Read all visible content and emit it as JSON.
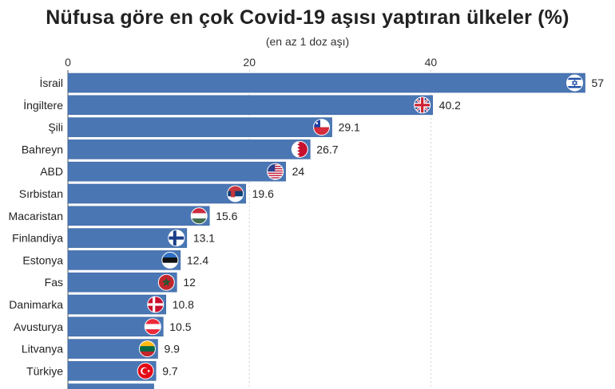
{
  "title": "Nüfusa göre en çok Covid-19 aşısı yaptıran ülkeler (%)",
  "subtitle": "(en az 1 doz aşı)",
  "chart_data": {
    "type": "bar",
    "orientation": "horizontal",
    "title": "Nüfusa göre en çok Covid-19 aşısı yaptıran ülkeler (%)",
    "subtitle": "(en az 1 doz aşı)",
    "xlabel": "",
    "ylabel": "",
    "xlim": [
      0,
      57
    ],
    "xticks": [
      0,
      20,
      40
    ],
    "grid": true,
    "bar_color": "#4a77b4",
    "categories": [
      "İsrail",
      "İngiltere",
      "Şili",
      "Bahreyn",
      "ABD",
      "Sırbistan",
      "Macaristan",
      "Finlandiya",
      "Estonya",
      "Fas",
      "Danimarka",
      "Avusturya",
      "Litvanya",
      "Türkiye"
    ],
    "values": [
      57,
      40.2,
      29.1,
      26.7,
      24,
      19.6,
      15.6,
      13.1,
      12.4,
      12,
      10.8,
      10.5,
      9.9,
      9.7
    ],
    "value_labels": [
      "57",
      "40.2",
      "29.1",
      "26.7",
      "24",
      "19.6",
      "15.6",
      "13.1",
      "12.4",
      "12",
      "10.8",
      "10.5",
      "9.9",
      "9.7"
    ],
    "flags": [
      "israel-flag-icon",
      "uk-flag-icon",
      "chile-flag-icon",
      "bahrain-flag-icon",
      "usa-flag-icon",
      "serbia-flag-icon",
      "hungary-flag-icon",
      "finland-flag-icon",
      "estonia-flag-icon",
      "morocco-flag-icon",
      "denmark-flag-icon",
      "austria-flag-icon",
      "lithuania-flag-icon",
      "turkey-flag-icon"
    ]
  }
}
